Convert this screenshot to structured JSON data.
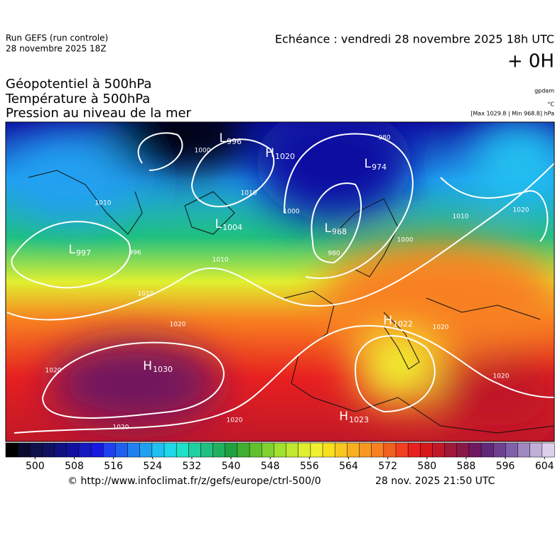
{
  "header": {
    "run": "Run GEFS (run controle)",
    "run_date": "28 novembre 2025 18Z",
    "echeance": "Echéance : vendredi 28 novembre 2025 18h UTC",
    "offset": "+ 0H"
  },
  "titles": [
    "Géopotentiel à 500hPa",
    "Température à 500hPa",
    "Pression au niveau de la mer"
  ],
  "units": {
    "geopotential": "gpdam",
    "temperature": "°C",
    "extremes": "[Max 1029.8 | Min 968.8] hPa"
  },
  "pressure_centers": [
    {
      "type": "L",
      "value": "996"
    },
    {
      "type": "H",
      "value": "1020"
    },
    {
      "type": "L",
      "value": "974"
    },
    {
      "type": "L",
      "value": "1004"
    },
    {
      "type": "L",
      "value": "968"
    },
    {
      "type": "L",
      "value": "997"
    },
    {
      "type": "H",
      "value": "1030"
    },
    {
      "type": "H",
      "value": "1023"
    },
    {
      "type": "H",
      "value": "1022"
    }
  ],
  "isobar_labels": [
    "980",
    "1010",
    "1010",
    "1000",
    "980",
    "1000",
    "1010",
    "1020",
    "1020",
    "1020",
    "1020",
    "1020",
    "1020",
    "1000",
    "1010",
    "996",
    "1010",
    "1020"
  ],
  "colorbar": {
    "range": [
      494,
      606
    ],
    "ticks": [
      500,
      508,
      516,
      524,
      532,
      540,
      548,
      556,
      564,
      572,
      580,
      588,
      596,
      604
    ],
    "colors": [
      "#000000",
      "#0a0a30",
      "#10104a",
      "#101060",
      "#101080",
      "#1010a0",
      "#1818c0",
      "#1818e0",
      "#2040f0",
      "#2060f0",
      "#2080f0",
      "#20a0f0",
      "#20c0f0",
      "#20d8e8",
      "#20e0c8",
      "#20d0a0",
      "#20c080",
      "#20b060",
      "#20a040",
      "#40b030",
      "#60c030",
      "#80d030",
      "#a0e030",
      "#c0e830",
      "#e0f030",
      "#f0f030",
      "#f8e020",
      "#f8c820",
      "#f8b020",
      "#f89820",
      "#f88020",
      "#f06020",
      "#f04020",
      "#e82020",
      "#d81818",
      "#c01828",
      "#a01838",
      "#881848",
      "#701860",
      "#602878",
      "#704090",
      "#8060a8",
      "#a088c0",
      "#c0b0d8",
      "#dcd0ec"
    ]
  },
  "footer": {
    "source": "© http://www.infoclimat.fr/z/gefs/europe/ctrl-500/0",
    "timestamp": "28 nov. 2025 21:50 UTC"
  }
}
